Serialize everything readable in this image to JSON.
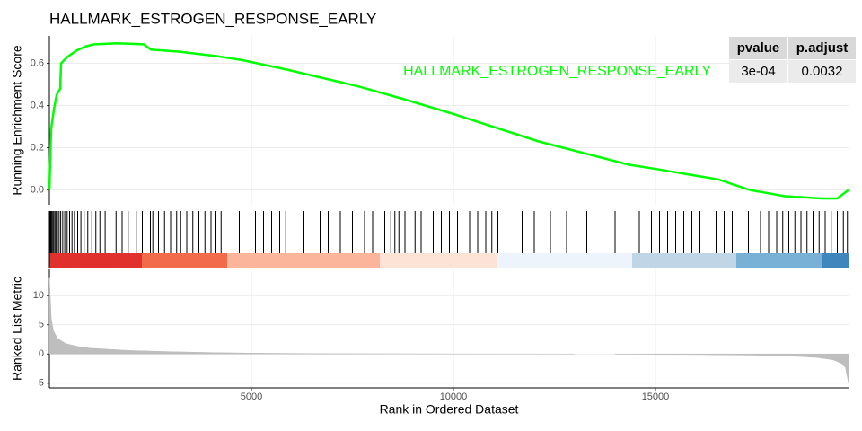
{
  "chart_data": [
    {
      "type": "line",
      "title": "HALLMARK_ESTROGEN_RESPONSE_EARLY",
      "ylabel": "Running Enrichment Score",
      "xlim": [
        0,
        19778
      ],
      "ylim": [
        -0.07,
        0.73
      ],
      "yticks": [
        {
          "value": 0,
          "label": "0.0"
        },
        0.2,
        0.4,
        0.6
      ],
      "grid": true,
      "x": [
        0,
        44,
        111,
        178,
        267,
        289,
        444,
        667,
        889,
        1111,
        1667,
        2333,
        2511,
        3222,
        4111,
        4778,
        5889,
        7667,
        8778,
        10000,
        12111,
        14333,
        15000,
        16556,
        17333,
        18222,
        19111,
        19500,
        19778
      ],
      "series": [
        {
          "name": "HALLMARK_ESTROGEN_RESPONSE_EARLY",
          "color": "#00ff00",
          "values": [
            0.0,
            0.29,
            0.38,
            0.45,
            0.48,
            0.6,
            0.63,
            0.66,
            0.68,
            0.69,
            0.695,
            0.69,
            0.665,
            0.655,
            0.635,
            0.615,
            0.57,
            0.49,
            0.43,
            0.36,
            0.23,
            0.12,
            0.1,
            0.05,
            0.0,
            -0.03,
            -0.04,
            -0.04,
            0.0
          ]
        }
      ],
      "table": {
        "columns": [
          "pvalue",
          "p.adjust"
        ],
        "rows": [
          [
            "3e-04",
            "0.0032"
          ]
        ]
      }
    },
    {
      "type": "rug",
      "xlim": [
        0,
        19778
      ],
      "color": "#000000",
      "hits": [
        10,
        25,
        40,
        60,
        85,
        110,
        140,
        170,
        200,
        240,
        280,
        330,
        380,
        440,
        500,
        560,
        620,
        700,
        780,
        860,
        950,
        1050,
        1150,
        1250,
        1380,
        1500,
        1650,
        1800,
        1950,
        2150,
        2300,
        2500,
        2560,
        2700,
        2850,
        3000,
        3150,
        3250,
        3400,
        3550,
        3700,
        3850,
        4000,
        4100,
        4250,
        4700,
        5100,
        5300,
        5500,
        5700,
        5850,
        6300,
        6700,
        6900,
        7200,
        7500,
        7800,
        8000,
        8300,
        8450,
        8550,
        8650,
        8800,
        8900,
        9050,
        9200,
        9500,
        9700,
        9900,
        10100,
        10400,
        10600,
        10800,
        10950,
        11100,
        11300,
        11700,
        12000,
        12400,
        12800,
        13300,
        13700,
        14000,
        14600,
        14900,
        15100,
        15300,
        15500,
        15700,
        15900,
        16100,
        16300,
        16500,
        16700,
        16900,
        17300,
        17600,
        17800,
        18000,
        18150,
        18300,
        18450,
        18600,
        18750,
        18900,
        19050,
        19200,
        19350,
        19500,
        19650,
        19750
      ]
    },
    {
      "type": "area",
      "ylabel": "Ranked List Metric",
      "xlabel": "Rank in Ordered Dataset",
      "color": "#bebebe",
      "xlim": [
        0,
        19778
      ],
      "xticks": [
        5000,
        10000,
        15000
      ],
      "ylim": [
        -5.8,
        14.5
      ],
      "yticks": [
        -5,
        0,
        5,
        10
      ],
      "grid": true,
      "x": [
        1,
        50,
        100,
        200,
        400,
        700,
        1000,
        1500,
        2000,
        3000,
        4000,
        5000,
        6500,
        8000,
        10000,
        12000,
        13000,
        13500,
        14000,
        16000,
        17500,
        18500,
        19000,
        19400,
        19600,
        19700,
        19778
      ],
      "values": [
        13,
        6,
        4,
        2.7,
        1.8,
        1.3,
        1.0,
        0.8,
        0.6,
        0.4,
        0.25,
        0.15,
        0.08,
        0.05,
        0.02,
        0.01,
        0.0,
        null,
        -0.02,
        -0.1,
        -0.2,
        -0.4,
        -0.6,
        -1.0,
        -1.6,
        -2.3,
        -5
      ]
    }
  ]
}
